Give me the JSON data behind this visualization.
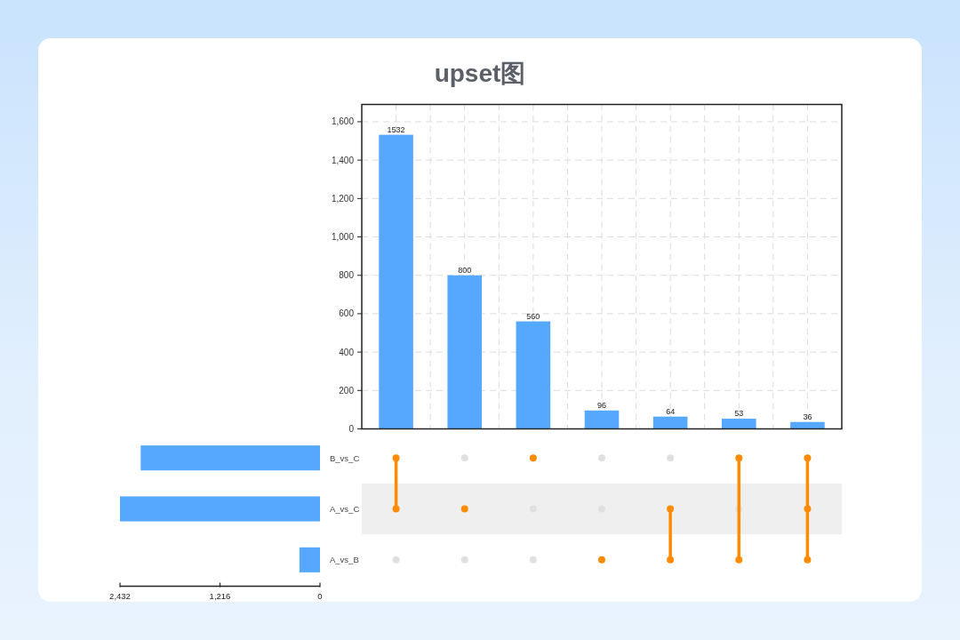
{
  "chart_data": [
    {
      "type": "bar",
      "title": "upset图",
      "categories": [
        null,
        null,
        null,
        null,
        null,
        null,
        null
      ],
      "values": [
        1532,
        800,
        560,
        96,
        64,
        53,
        36
      ],
      "color": "#55a8fd",
      "ylim": [
        0,
        1690
      ],
      "yticks": [
        0,
        200,
        400,
        600,
        800,
        {
          "value": 1000,
          "label": "1,000"
        },
        {
          "value": 1200,
          "label": "1,200"
        },
        {
          "value": 1400,
          "label": "1,400"
        },
        {
          "value": 1600,
          "label": "1,600"
        }
      ],
      "grid": true,
      "data_labels": true
    },
    {
      "type": "bar",
      "orientation": "horizontal",
      "categories": [
        "B_vs_C",
        "A_vs_C",
        "A_vs_B"
      ],
      "values": [
        2180,
        2432,
        250
      ],
      "color": "#55a8fd",
      "xlim": [
        2432,
        0
      ],
      "xticks": [
        {
          "value": 2432,
          "label": "2,432"
        },
        {
          "value": 1216,
          "label": "1,216"
        },
        0
      ]
    },
    {
      "type": "other",
      "categories": [
        null,
        null,
        null,
        null,
        null,
        null,
        null
      ],
      "cells": [
        [
          true,
          false,
          true,
          false,
          false,
          true,
          true
        ],
        [
          true,
          true,
          false,
          false,
          true,
          false,
          true
        ],
        [
          false,
          false,
          false,
          true,
          true,
          true,
          true
        ]
      ],
      "colors": [
        "#e0e0e0",
        "#ff8c00"
      ]
    }
  ]
}
